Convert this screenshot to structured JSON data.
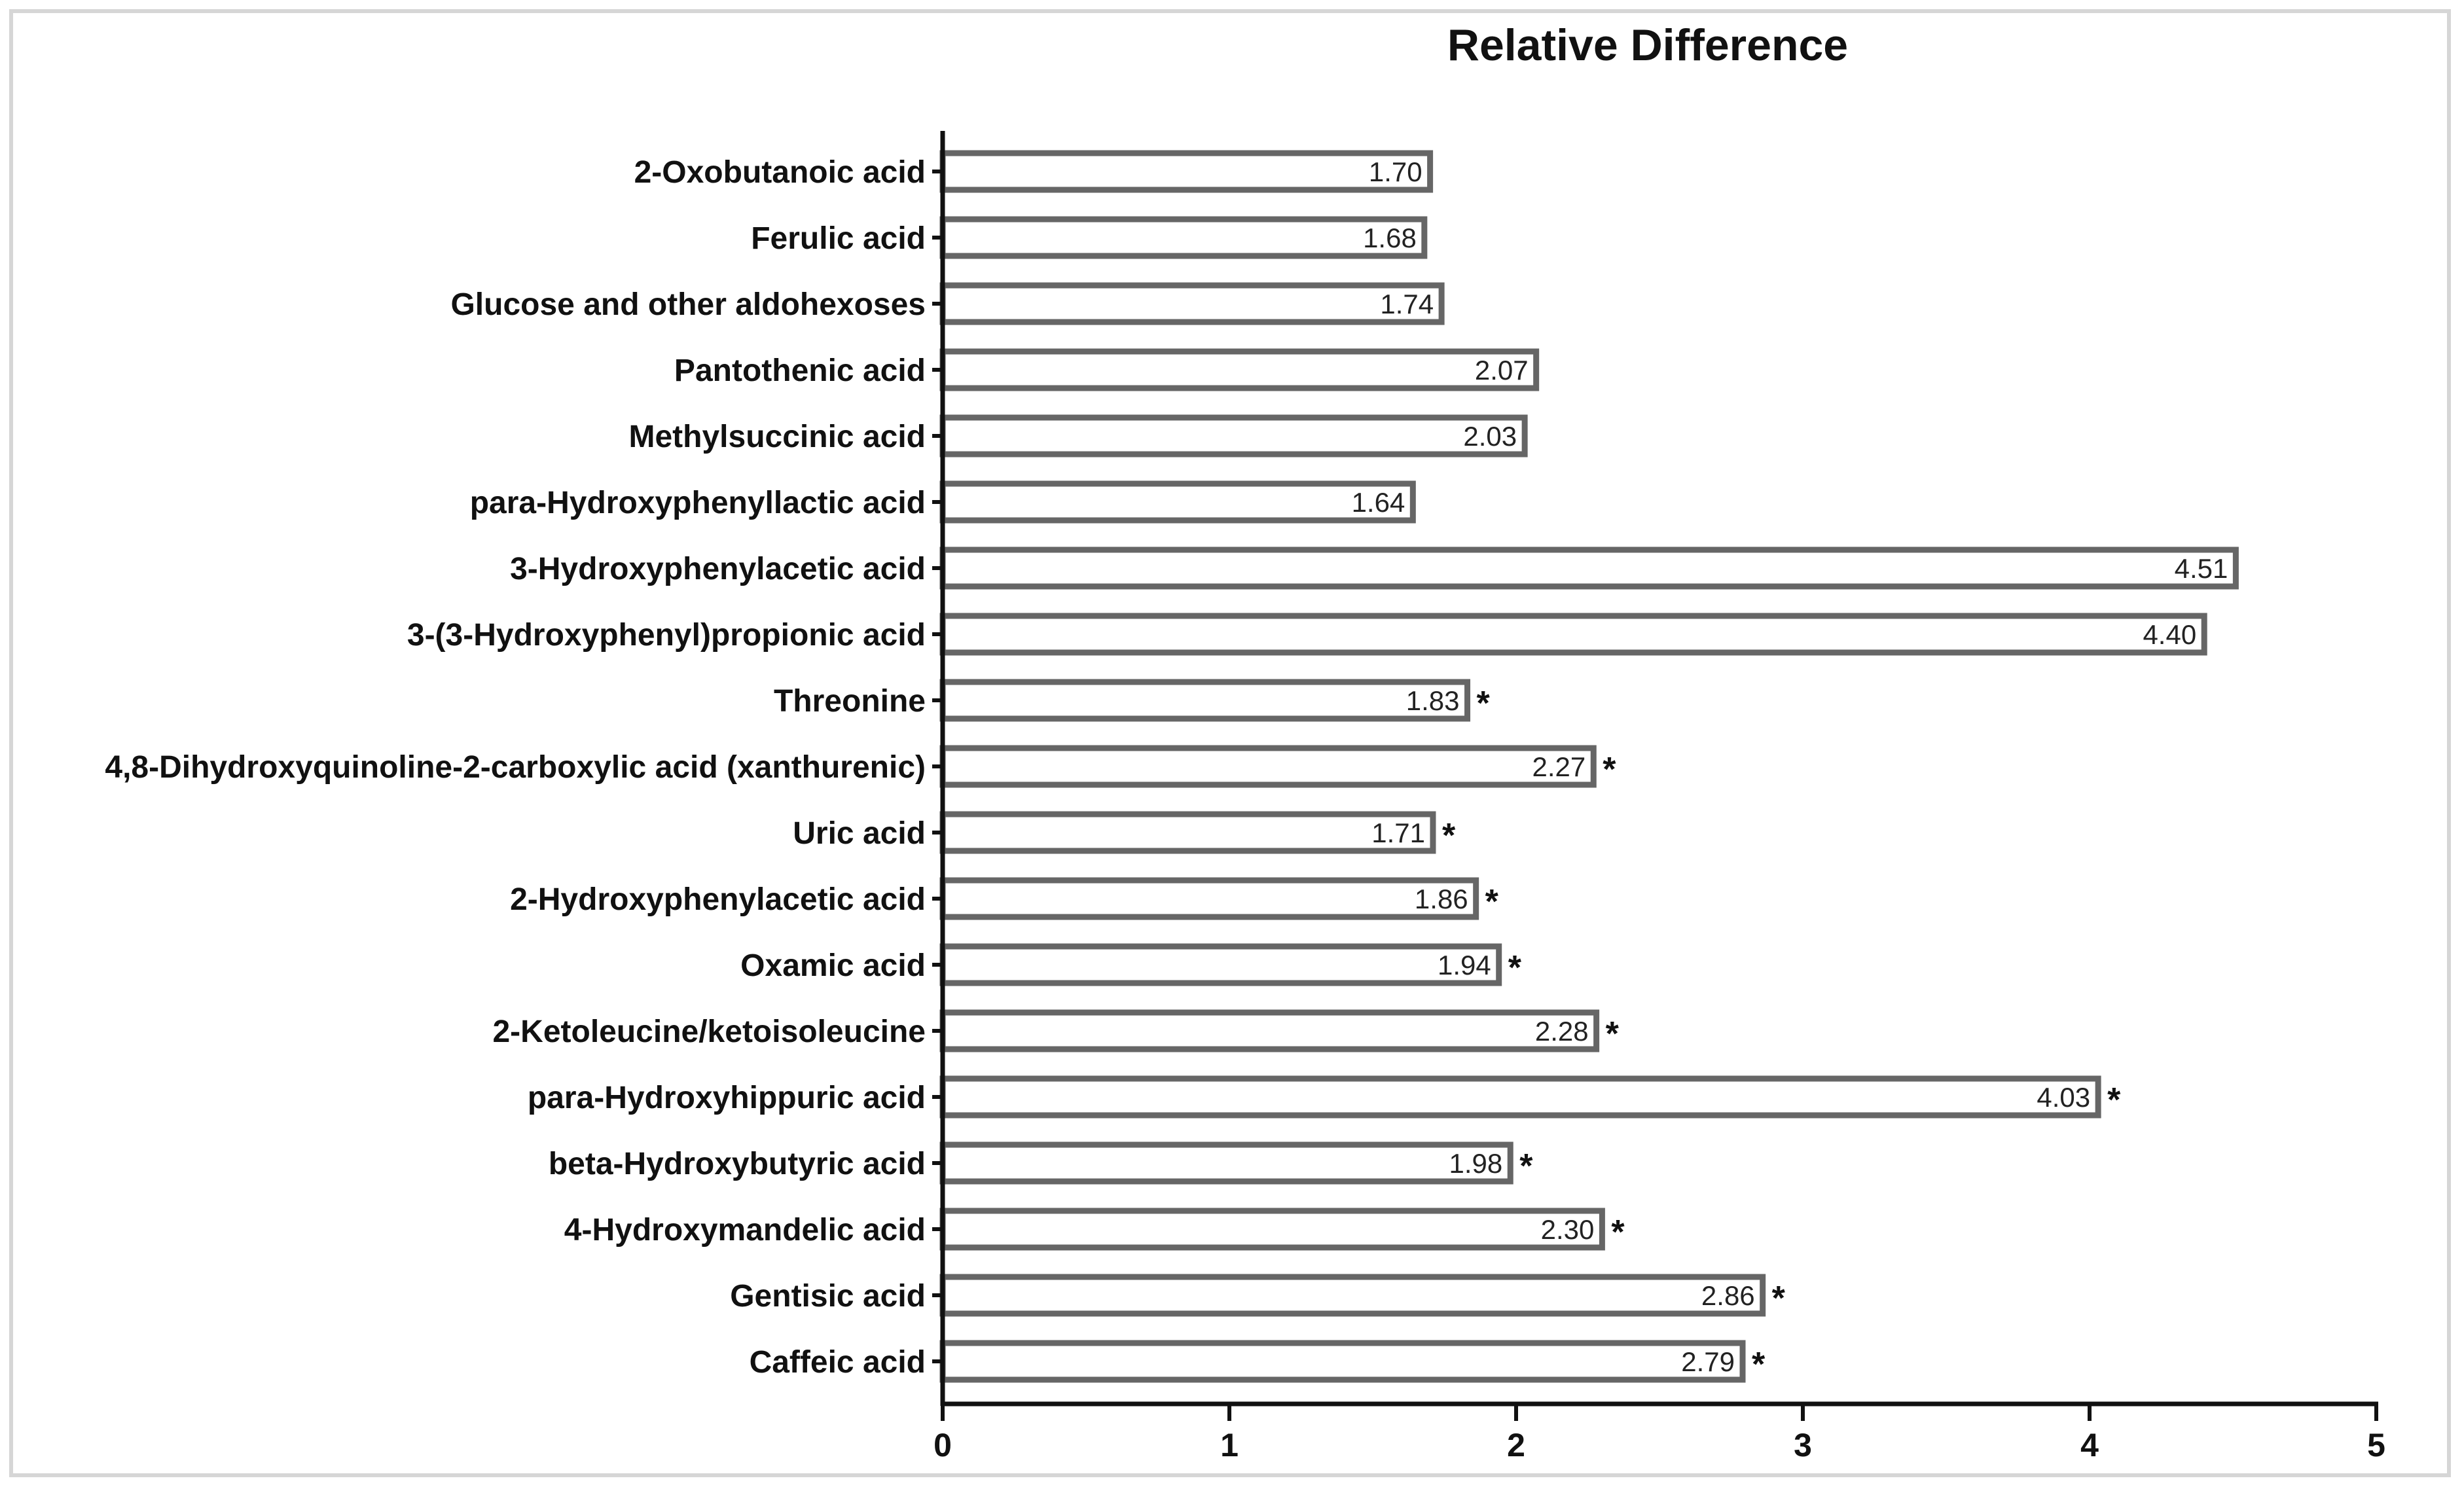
{
  "chart_data": {
    "type": "bar",
    "orientation": "horizontal",
    "title": "Relative Difference",
    "xlabel": "",
    "ylabel": "",
    "xlim": [
      0,
      5
    ],
    "xticks": [
      "0",
      "1",
      "2",
      "3",
      "4",
      "5"
    ],
    "categories": [
      "2-Oxobutanoic acid",
      "Ferulic acid",
      "Glucose and other aldohexoses",
      "Pantothenic acid",
      "Methylsuccinic acid",
      "para-Hydroxyphenyllactic acid",
      "3-Hydroxyphenylacetic acid",
      "3-(3-Hydroxyphenyl)propionic acid",
      "Threonine",
      "4,8-Dihydroxyquinoline-2-carboxylic acid (xanthurenic)",
      "Uric acid",
      "2-Hydroxyphenylacetic acid",
      "Oxamic acid",
      "2-Ketoleucine/ketoisoleucine",
      "para-Hydroxyhippuric acid",
      "beta-Hydroxybutyric acid",
      "4-Hydroxymandelic acid",
      "Gentisic acid",
      "Caffeic acid"
    ],
    "values": [
      1.7,
      1.68,
      1.74,
      2.07,
      2.03,
      1.64,
      4.51,
      4.4,
      1.83,
      2.27,
      1.71,
      1.86,
      1.94,
      2.28,
      4.03,
      1.98,
      2.3,
      2.86,
      2.79
    ],
    "value_labels": [
      "1.70",
      "1.68",
      "1.74",
      "2.07",
      "2.03",
      "1.64",
      "4.51",
      "4.40",
      "1.83",
      "2.27",
      "1.71",
      "1.86",
      "1.94",
      "2.28",
      "4.03",
      "1.98",
      "2.30",
      "2.86",
      "2.79"
    ],
    "significance": [
      "",
      "",
      "",
      "",
      "",
      "",
      "",
      "",
      "*",
      "*",
      "*",
      "*",
      "*",
      "*",
      "*",
      "*",
      "*",
      "*",
      "*"
    ],
    "colors": {
      "bar_fill": "#ffffff",
      "bar_stroke": "#666666",
      "axis": "#111111"
    }
  }
}
